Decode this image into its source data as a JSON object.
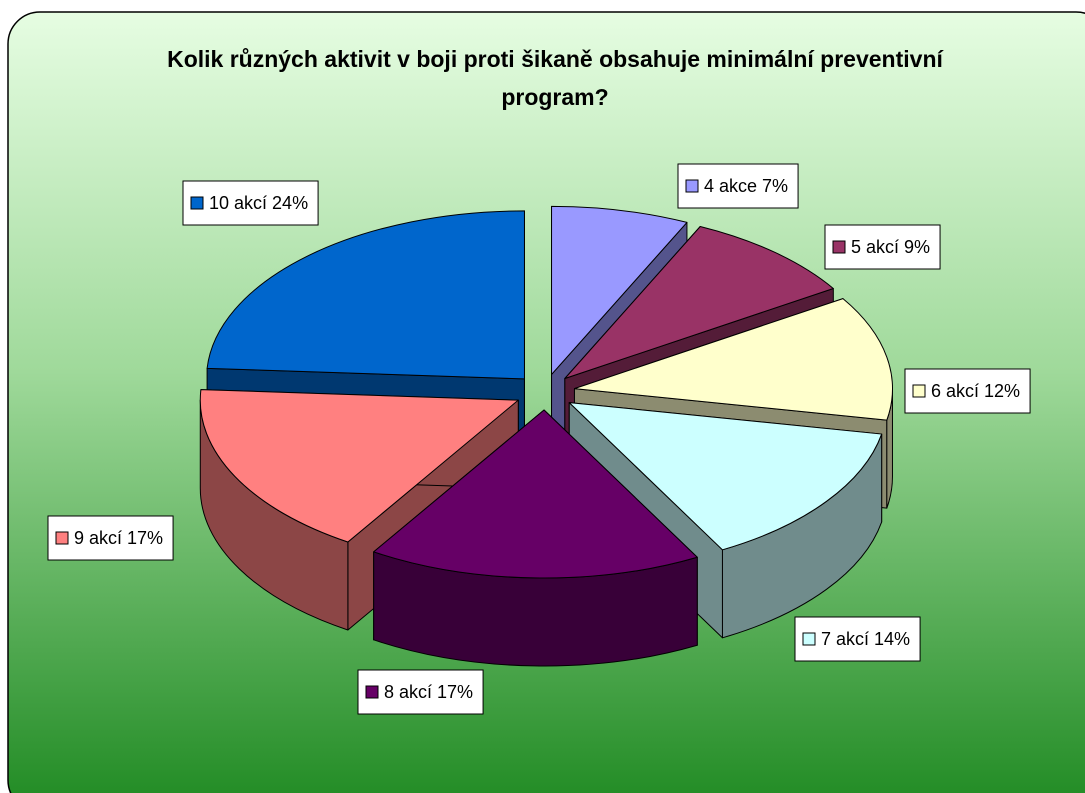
{
  "chart_data": {
    "type": "pie",
    "title": "Kolik různých aktivit v boji proti šikaně obsahuje minimální preventivní program?",
    "categories": [
      "4 akce",
      "5 akcí",
      "6 akcí",
      "7 akcí",
      "8 akcí",
      "9 akcí",
      "10 akcí"
    ],
    "values": [
      7,
      9,
      12,
      14,
      17,
      17,
      24
    ],
    "value_labels": [
      "7%",
      "9%",
      "12%",
      "14%",
      "17%",
      "17%",
      "24%"
    ],
    "colors": [
      "#9999ff",
      "#993366",
      "#ffffcc",
      "#ccffff",
      "#660066",
      "#ff8080",
      "#0066cc"
    ],
    "exploded": true,
    "three_d": true
  }
}
